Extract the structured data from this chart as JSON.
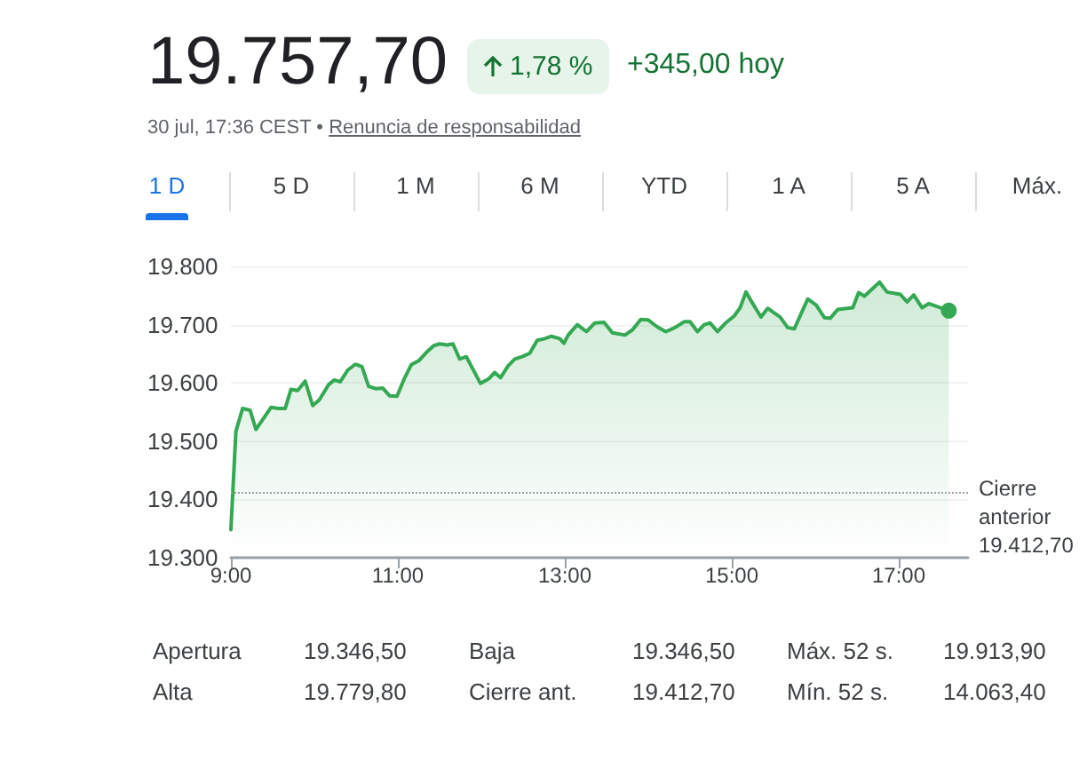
{
  "chart_data": {
    "type": "area",
    "title": "19.757,70",
    "subtitle": "30 jul, 17:36 CEST • Renuncia de responsabilidad",
    "annotations": [
      "1,78 %",
      "+345,00 hoy",
      "1 D",
      "5 D",
      "1 M",
      "6 M",
      "YTD",
      "1 A",
      "5 A",
      "Máx.",
      "Apertura",
      "19.346,50",
      "Baja",
      "19.346,50",
      "Máx. 52 s.",
      "19.913,90",
      "Alta",
      "19.779,80",
      "Cierre ant.",
      "19.412,70",
      "Mín. 52 s.",
      "14.063,40"
    ],
    "x": [
      9.0,
      9.06,
      9.14,
      9.23,
      9.3,
      9.48,
      9.57,
      9.65,
      9.72,
      9.8,
      9.89,
      9.98,
      10.06,
      10.17,
      10.24,
      10.31,
      10.4,
      10.49,
      10.57,
      10.65,
      10.74,
      10.82,
      10.9,
      10.99,
      11.07,
      11.16,
      11.25,
      11.34,
      11.43,
      11.5,
      11.59,
      11.66,
      11.74,
      11.82,
      11.99,
      12.09,
      12.16,
      12.23,
      12.32,
      12.4,
      12.49,
      12.58,
      12.67,
      12.76,
      12.84,
      12.94,
      12.99,
      13.04,
      13.15,
      13.26,
      13.36,
      13.47,
      13.57,
      13.72,
      13.81,
      13.91,
      14.0,
      14.11,
      14.21,
      14.32,
      14.43,
      14.5,
      14.59,
      14.67,
      14.74,
      14.83,
      14.92,
      15.03,
      15.1,
      15.17,
      15.26,
      15.35,
      15.43,
      15.58,
      15.67,
      15.75,
      15.91,
      16.01,
      16.11,
      16.18,
      16.27,
      16.38,
      16.45,
      16.52,
      16.59,
      16.77,
      16.86,
      17.02,
      17.1,
      17.18,
      17.28,
      17.36,
      17.6
    ],
    "series": [
      {
        "color": "#34a853",
        "values": [
          19348,
          19517,
          19556,
          19553,
          19520,
          19558,
          19556,
          19556,
          19589,
          19587,
          19603,
          19561,
          19571,
          19597,
          19605,
          19602,
          19622,
          19632,
          19628,
          19594,
          19590,
          19591,
          19578,
          19577,
          19605,
          19631,
          19638,
          19652,
          19664,
          19667,
          19665,
          19667,
          19641,
          19645,
          19599,
          19607,
          19618,
          19609,
          19629,
          19641,
          19645,
          19651,
          19673,
          19676,
          19680,
          19676,
          19668,
          19682,
          19700,
          19688,
          19703,
          19704,
          19686,
          19682,
          19691,
          19709,
          19708,
          19696,
          19688,
          19695,
          19705,
          19705,
          19688,
          19700,
          19703,
          19688,
          19702,
          19715,
          19729,
          19756,
          19734,
          19713,
          19728,
          19713,
          19695,
          19693,
          19744,
          19734,
          19712,
          19711,
          19726,
          19728,
          19729,
          19755,
          19749,
          19773,
          19756,
          19752,
          19739,
          19751,
          19729,
          19736,
          19724
        ]
      }
    ],
    "xlim": [
      9,
      17.83
    ],
    "xticks": [
      {
        "value": 9,
        "label": "9:00"
      },
      {
        "value": 11,
        "label": "11:00"
      },
      {
        "value": 13,
        "label": "13:00"
      },
      {
        "value": 15,
        "label": "15:00"
      },
      {
        "value": 17,
        "label": "17:00"
      }
    ],
    "ylim": [
      19300,
      19800
    ],
    "yticks": [
      {
        "value": 19300,
        "label": "19.300"
      },
      {
        "value": 19400,
        "label": "19.400"
      },
      {
        "value": 19500,
        "label": "19.500"
      },
      {
        "value": 19600,
        "label": "19.600"
      },
      {
        "value": 19700,
        "label": "19.700"
      },
      {
        "value": 19800,
        "label": "19.800"
      }
    ],
    "grid": "y",
    "line_style": "solid",
    "ref_lines": [
      {
        "axis": "y",
        "value": 19412.7,
        "label": "Cierre\nanterior\n19.412,70",
        "color": "#9aa0a6",
        "line_style": "dotted"
      }
    ]
  }
}
